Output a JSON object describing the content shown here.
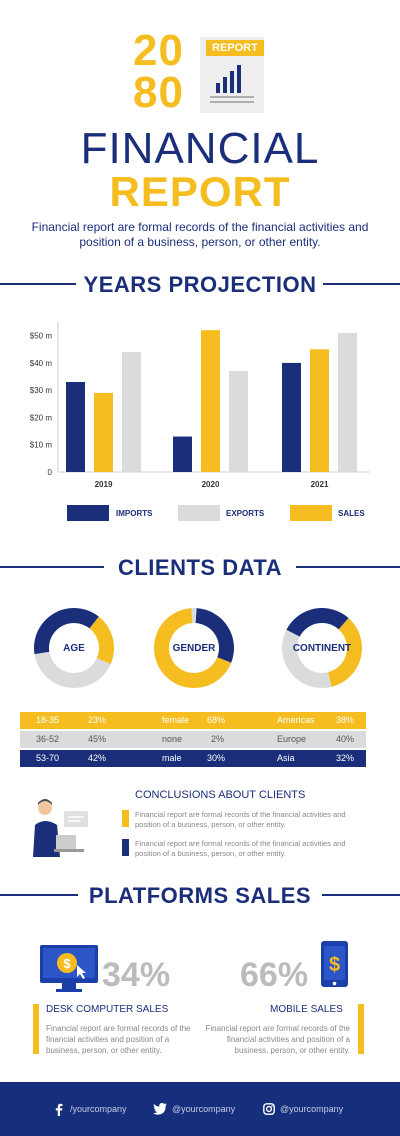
{
  "header": {
    "year_top": "20",
    "year_bottom": "80",
    "badge": "REPORT",
    "title_line1": "FINANCIAL",
    "title_line2": "REPORT",
    "subtitle": "Financial report are formal records of the financial activities and position of a business, person, or other entity."
  },
  "projection": {
    "section_title": "YEARS PROJECTION"
  },
  "chart_data": {
    "type": "bar",
    "categories": [
      "2019",
      "2020",
      "2021"
    ],
    "series": [
      {
        "name": "IMPORTS",
        "color": "#1a2e7a",
        "values": [
          33,
          13,
          40
        ]
      },
      {
        "name": "EXPORTS",
        "color": "#d9dbdd",
        "values": [
          44,
          37,
          51
        ]
      },
      {
        "name": "SALES",
        "color": "#f5bd1f",
        "values": [
          29,
          52,
          45
        ]
      }
    ],
    "series_order_in_group": [
      "IMPORTS",
      "SALES",
      "EXPORTS"
    ],
    "yticks": [
      "0",
      "$10 m",
      "$20 m",
      "$30 m",
      "$40 m",
      "$50 m"
    ],
    "ylim": [
      0,
      55
    ]
  },
  "clients": {
    "section_title": "CLIENTS DATA",
    "donuts": [
      {
        "label": "AGE",
        "segments": [
          {
            "value": 23,
            "color": "#f5bd1f"
          },
          {
            "value": 45,
            "color": "#d9dbdd"
          },
          {
            "value": 42,
            "color": "#1a2e7a"
          }
        ]
      },
      {
        "label": "GENDER",
        "segments": [
          {
            "value": 68,
            "color": "#f5bd1f"
          },
          {
            "value": 2,
            "color": "#d9dbdd"
          },
          {
            "value": 30,
            "color": "#1a2e7a"
          }
        ]
      },
      {
        "label": "CONTINENT",
        "segments": [
          {
            "value": 38,
            "color": "#f5bd1f"
          },
          {
            "value": 40,
            "color": "#d9dbdd"
          },
          {
            "value": 32,
            "color": "#1a2e7a"
          }
        ]
      }
    ],
    "rows": [
      {
        "c1": "18-35",
        "v1": "23%",
        "c2": "female",
        "v2": "68%",
        "c3": "Americas",
        "v3": "38%"
      },
      {
        "c1": "36-52",
        "v1": "45%",
        "c2": "none",
        "v2": "2%",
        "c3": "Europe",
        "v3": "40%"
      },
      {
        "c1": "53-70",
        "v1": "42%",
        "c2": "male",
        "v2": "30%",
        "c3": "Asia",
        "v3": "32%"
      }
    ],
    "conclusions_title": "CONCLUSIONS ABOUT CLIENTS",
    "conclusion_1": "Financial report are formal records of the financial activities and position of a business, person, or other entity.",
    "conclusion_2": "Financial report are formal records of the financial activities and position of a business, person, or other entity."
  },
  "platforms": {
    "section_title": "PLATFORMS SALES",
    "desktop_pct": "34%",
    "desktop_title": "DESK COMPUTER SALES",
    "desktop_text": "Financial report are formal records of the financial activities and position of a business, person, or other entity.",
    "mobile_pct": "66%",
    "mobile_title": "MOBILE  SALES",
    "mobile_text": "Financial report are formal records of the financial activities and position of a business, person, or other entity."
  },
  "footer": {
    "facebook": "/yourcompany",
    "twitter": "@yourcompany",
    "instagram": "@yourcompany"
  },
  "colors": {
    "navy": "#1a2e7a",
    "gold": "#f5bd1f",
    "grey": "#d9dbdd"
  }
}
